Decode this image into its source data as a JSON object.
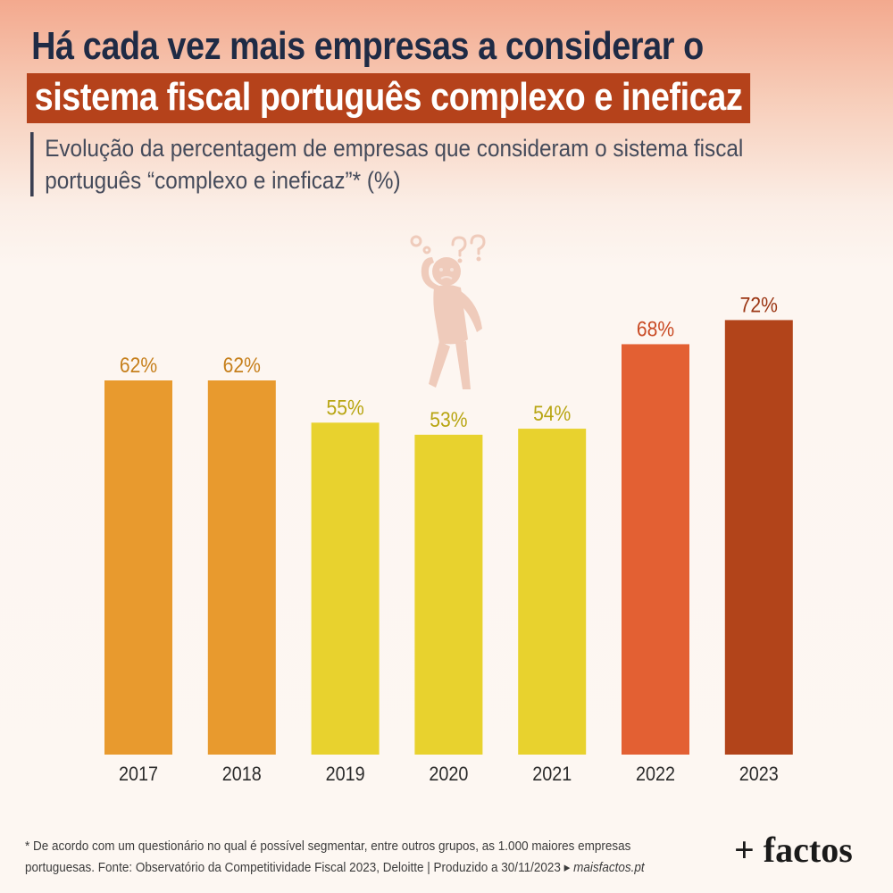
{
  "header": {
    "title_line1": "Há cada vez mais empresas a considerar o",
    "title_line2": "sistema fiscal português complexo e ineficaz",
    "subtitle_line1": "Evolução da percentagem de empresas que consideram o sistema fiscal",
    "subtitle_line2": "português “complexo e ineficaz”* (%)"
  },
  "chart_data": {
    "type": "bar",
    "categories": [
      "2017",
      "2018",
      "2019",
      "2020",
      "2021",
      "2022",
      "2023"
    ],
    "values": [
      62,
      62,
      55,
      53,
      54,
      68,
      72
    ],
    "data_labels": [
      "62%",
      "62%",
      "55%",
      "53%",
      "54%",
      "68%",
      "72%"
    ],
    "colors": [
      "#e89a2e",
      "#e89a2e",
      "#e8d22e",
      "#e8d22e",
      "#e8d22e",
      "#e36033",
      "#b2441a"
    ],
    "label_colors": [
      "#c67f1b",
      "#c67f1b",
      "#b8a512",
      "#b8a512",
      "#b8a512",
      "#c94a24",
      "#9b3513"
    ],
    "ylim": [
      0,
      100
    ],
    "grid": false,
    "legend": "none",
    "unit": "%"
  },
  "illustration": {
    "icon": "confused-person-icon",
    "color": "#f0cbbb"
  },
  "footer": {
    "note_line1": "* De acordo com um questionário no qual é possível segmentar, entre outros grupos, as 1.000 maiores empresas",
    "note_line2": "portuguesas. Fonte: Observatório da Competitividade Fiscal 2023, Deloitte  |  Produzido a 30/11/2023 ▸ ",
    "site": "maisfactos.pt",
    "logo": "+ factos"
  }
}
